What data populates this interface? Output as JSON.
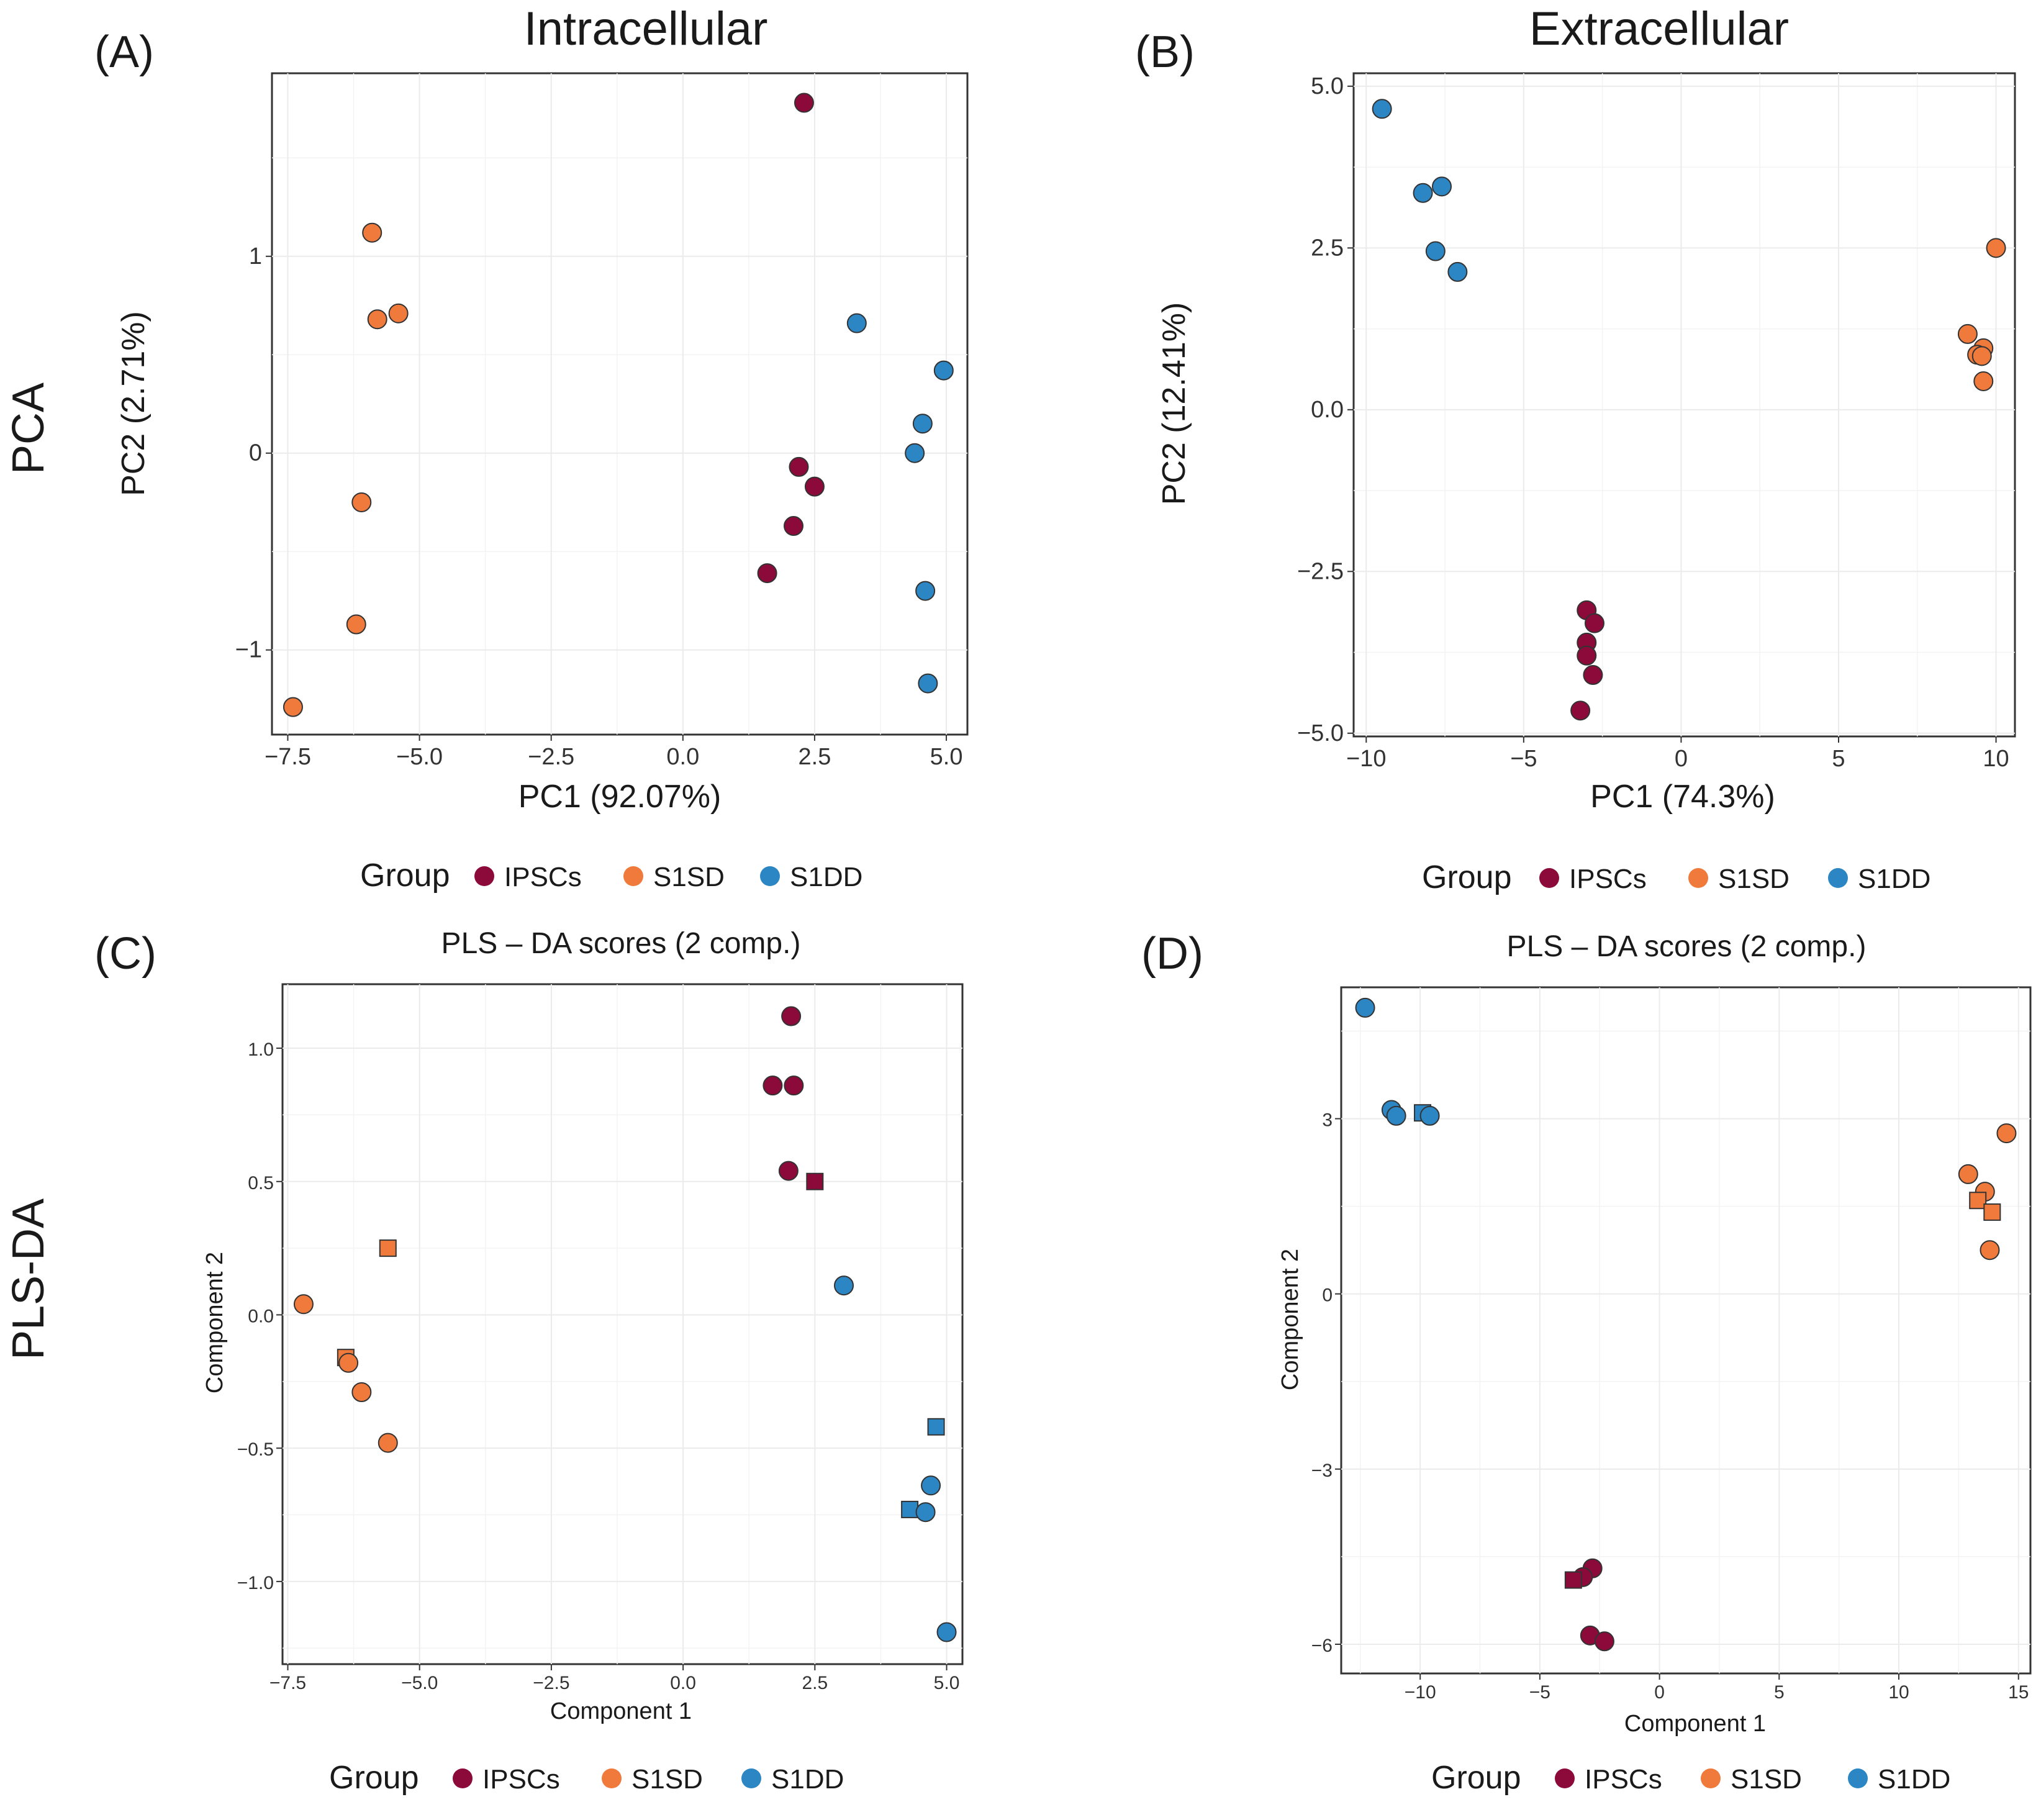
{
  "figure": {
    "row_labels": [
      "PCA",
      "PLS-DA"
    ],
    "groups": [
      {
        "name": "IPSCs",
        "color": "#8b0a3a"
      },
      {
        "name": "S1SD",
        "color": "#f07a3c"
      },
      {
        "name": "S1DD",
        "color": "#2c86c3"
      }
    ],
    "legend_title": "Group"
  },
  "chart_data": [
    {
      "id": "A",
      "panel_label": "(A)",
      "type": "scatter",
      "title": "Intracellular",
      "xlabel": "PC1 (92.07%)",
      "ylabel": "PC2 (2.71%)",
      "xlim": [
        -7.8,
        5.4
      ],
      "ylim": [
        -1.43,
        1.93
      ],
      "xticks": [
        -7.5,
        -5.0,
        -2.5,
        0.0,
        2.5,
        5.0
      ],
      "xtick_labels": [
        "-7.5",
        "-5.0",
        "-2.5",
        "0.0",
        "2.5",
        "5.0"
      ],
      "yticks": [
        -1,
        0,
        1
      ],
      "ytick_labels": [
        "-1",
        "0",
        "1"
      ],
      "points": [
        {
          "group": "IPSCs",
          "shape": "circle",
          "x": 2.3,
          "y": 1.78
        },
        {
          "group": "IPSCs",
          "shape": "circle",
          "x": 2.2,
          "y": -0.07
        },
        {
          "group": "IPSCs",
          "shape": "circle",
          "x": 2.5,
          "y": -0.17
        },
        {
          "group": "IPSCs",
          "shape": "circle",
          "x": 2.1,
          "y": -0.37
        },
        {
          "group": "IPSCs",
          "shape": "circle",
          "x": 1.6,
          "y": -0.61
        },
        {
          "group": "S1SD",
          "shape": "circle",
          "x": -5.9,
          "y": 1.12
        },
        {
          "group": "S1SD",
          "shape": "circle",
          "x": -5.8,
          "y": 0.68
        },
        {
          "group": "S1SD",
          "shape": "circle",
          "x": -5.4,
          "y": 0.71
        },
        {
          "group": "S1SD",
          "shape": "circle",
          "x": -6.1,
          "y": -0.25
        },
        {
          "group": "S1SD",
          "shape": "circle",
          "x": -6.2,
          "y": -0.87
        },
        {
          "group": "S1SD",
          "shape": "circle",
          "x": -7.4,
          "y": -1.29
        },
        {
          "group": "S1DD",
          "shape": "circle",
          "x": 3.3,
          "y": 0.66
        },
        {
          "group": "S1DD",
          "shape": "circle",
          "x": 4.95,
          "y": 0.42
        },
        {
          "group": "S1DD",
          "shape": "circle",
          "x": 4.55,
          "y": 0.15
        },
        {
          "group": "S1DD",
          "shape": "circle",
          "x": 4.4,
          "y": 0.0
        },
        {
          "group": "S1DD",
          "shape": "circle",
          "x": 4.6,
          "y": -0.7
        },
        {
          "group": "S1DD",
          "shape": "circle",
          "x": 4.65,
          "y": -1.17
        }
      ]
    },
    {
      "id": "B",
      "panel_label": "(B)",
      "type": "scatter",
      "title": "Extracellular",
      "xlabel": "PC1 (74.3%)",
      "ylabel": "PC2 (12.41%)",
      "xlim": [
        -10.4,
        10.6
      ],
      "ylim": [
        -5.05,
        5.2
      ],
      "xticks": [
        -10,
        -5,
        0,
        5,
        10
      ],
      "xtick_labels": [
        "-10",
        "-5",
        "0",
        "5",
        "10"
      ],
      "yticks": [
        -5.0,
        -2.5,
        0.0,
        2.5,
        5.0
      ],
      "ytick_labels": [
        "-5.0",
        "-2.5",
        "0.0",
        "2.5",
        "5.0"
      ],
      "points": [
        {
          "group": "IPSCs",
          "shape": "circle",
          "x": -3.0,
          "y": -3.1
        },
        {
          "group": "IPSCs",
          "shape": "circle",
          "x": -2.75,
          "y": -3.3
        },
        {
          "group": "IPSCs",
          "shape": "circle",
          "x": -3.0,
          "y": -3.6
        },
        {
          "group": "IPSCs",
          "shape": "circle",
          "x": -3.0,
          "y": -3.8
        },
        {
          "group": "IPSCs",
          "shape": "circle",
          "x": -2.8,
          "y": -4.1
        },
        {
          "group": "IPSCs",
          "shape": "circle",
          "x": -3.2,
          "y": -4.65
        },
        {
          "group": "S1SD",
          "shape": "circle",
          "x": 10.0,
          "y": 2.5
        },
        {
          "group": "S1SD",
          "shape": "circle",
          "x": 9.1,
          "y": 1.17
        },
        {
          "group": "S1SD",
          "shape": "circle",
          "x": 9.6,
          "y": 0.95
        },
        {
          "group": "S1SD",
          "shape": "circle",
          "x": 9.4,
          "y": 0.85
        },
        {
          "group": "S1SD",
          "shape": "circle",
          "x": 9.55,
          "y": 0.83
        },
        {
          "group": "S1SD",
          "shape": "circle",
          "x": 9.6,
          "y": 0.44
        },
        {
          "group": "S1DD",
          "shape": "circle",
          "x": -9.5,
          "y": 4.65
        },
        {
          "group": "S1DD",
          "shape": "circle",
          "x": -7.6,
          "y": 3.45
        },
        {
          "group": "S1DD",
          "shape": "circle",
          "x": -8.2,
          "y": 3.35
        },
        {
          "group": "S1DD",
          "shape": "circle",
          "x": -7.8,
          "y": 2.45
        },
        {
          "group": "S1DD",
          "shape": "circle",
          "x": -7.1,
          "y": 2.13
        }
      ]
    },
    {
      "id": "C",
      "panel_label": "(C)",
      "type": "scatter",
      "title": "PLS – DA scores (2 comp.)",
      "xlabel": "Component 1",
      "ylabel": "Component 2",
      "xlim": [
        -7.6,
        5.3
      ],
      "ylim": [
        -1.31,
        1.24
      ],
      "xticks": [
        -7.5,
        -5.0,
        -2.5,
        0.0,
        2.5,
        5.0
      ],
      "xtick_labels": [
        "-7.5",
        "-5.0",
        "-2.5",
        "0.0",
        "2.5",
        "5.0"
      ],
      "yticks": [
        -1.0,
        -0.5,
        0.0,
        0.5,
        1.0
      ],
      "ytick_labels": [
        "-1.0",
        "-0.5",
        "0.0",
        "0.5",
        "1.0"
      ],
      "points": [
        {
          "group": "IPSCs",
          "shape": "circle",
          "x": 2.05,
          "y": 1.12
        },
        {
          "group": "IPSCs",
          "shape": "circle",
          "x": 1.7,
          "y": 0.86
        },
        {
          "group": "IPSCs",
          "shape": "circle",
          "x": 2.1,
          "y": 0.86
        },
        {
          "group": "IPSCs",
          "shape": "circle",
          "x": 2.0,
          "y": 0.54
        },
        {
          "group": "IPSCs",
          "shape": "square",
          "x": 2.5,
          "y": 0.5
        },
        {
          "group": "S1SD",
          "shape": "square",
          "x": -5.6,
          "y": 0.25
        },
        {
          "group": "S1SD",
          "shape": "circle",
          "x": -7.2,
          "y": 0.04
        },
        {
          "group": "S1SD",
          "shape": "square",
          "x": -6.4,
          "y": -0.16
        },
        {
          "group": "S1SD",
          "shape": "circle",
          "x": -6.35,
          "y": -0.18
        },
        {
          "group": "S1SD",
          "shape": "circle",
          "x": -6.1,
          "y": -0.29
        },
        {
          "group": "S1SD",
          "shape": "circle",
          "x": -5.6,
          "y": -0.48
        },
        {
          "group": "S1DD",
          "shape": "circle",
          "x": 3.05,
          "y": 0.11
        },
        {
          "group": "S1DD",
          "shape": "square",
          "x": 4.8,
          "y": -0.42
        },
        {
          "group": "S1DD",
          "shape": "circle",
          "x": 4.7,
          "y": -0.64
        },
        {
          "group": "S1DD",
          "shape": "square",
          "x": 4.3,
          "y": -0.73
        },
        {
          "group": "S1DD",
          "shape": "circle",
          "x": 4.6,
          "y": -0.74
        },
        {
          "group": "S1DD",
          "shape": "circle",
          "x": 5.0,
          "y": -1.19
        }
      ]
    },
    {
      "id": "D",
      "panel_label": "(D)",
      "type": "scatter",
      "title": "PLS – DA scores (2 comp.)",
      "xlabel": "Component 1",
      "ylabel": "Component 2",
      "xlim": [
        -13.3,
        15.5
      ],
      "ylim": [
        -6.5,
        5.25
      ],
      "xticks": [
        -10,
        -5,
        0,
        5,
        10,
        15
      ],
      "xtick_labels": [
        "-10",
        "-5",
        "0",
        "5",
        "10",
        "15"
      ],
      "yticks": [
        -6,
        -3,
        0,
        3
      ],
      "ytick_labels": [
        "-6",
        "-3",
        "0",
        "3"
      ],
      "points": [
        {
          "group": "IPSCs",
          "shape": "circle",
          "x": -2.8,
          "y": -4.7
        },
        {
          "group": "IPSCs",
          "shape": "circle",
          "x": -3.2,
          "y": -4.85
        },
        {
          "group": "IPSCs",
          "shape": "square",
          "x": -3.6,
          "y": -4.9
        },
        {
          "group": "IPSCs",
          "shape": "circle",
          "x": -2.9,
          "y": -5.85
        },
        {
          "group": "IPSCs",
          "shape": "circle",
          "x": -2.3,
          "y": -5.95
        },
        {
          "group": "S1SD",
          "shape": "circle",
          "x": 14.5,
          "y": 2.75
        },
        {
          "group": "S1SD",
          "shape": "circle",
          "x": 12.9,
          "y": 2.05
        },
        {
          "group": "S1SD",
          "shape": "circle",
          "x": 13.6,
          "y": 1.75
        },
        {
          "group": "S1SD",
          "shape": "square",
          "x": 13.3,
          "y": 1.6
        },
        {
          "group": "S1SD",
          "shape": "square",
          "x": 13.9,
          "y": 1.4
        },
        {
          "group": "S1SD",
          "shape": "circle",
          "x": 13.8,
          "y": 0.75
        },
        {
          "group": "S1DD",
          "shape": "circle",
          "x": -12.3,
          "y": 4.9
        },
        {
          "group": "S1DD",
          "shape": "circle",
          "x": -11.2,
          "y": 3.15
        },
        {
          "group": "S1DD",
          "shape": "circle",
          "x": -11.0,
          "y": 3.05
        },
        {
          "group": "S1DD",
          "shape": "square",
          "x": -9.9,
          "y": 3.1
        },
        {
          "group": "S1DD",
          "shape": "circle",
          "x": -9.6,
          "y": 3.05
        }
      ]
    }
  ]
}
